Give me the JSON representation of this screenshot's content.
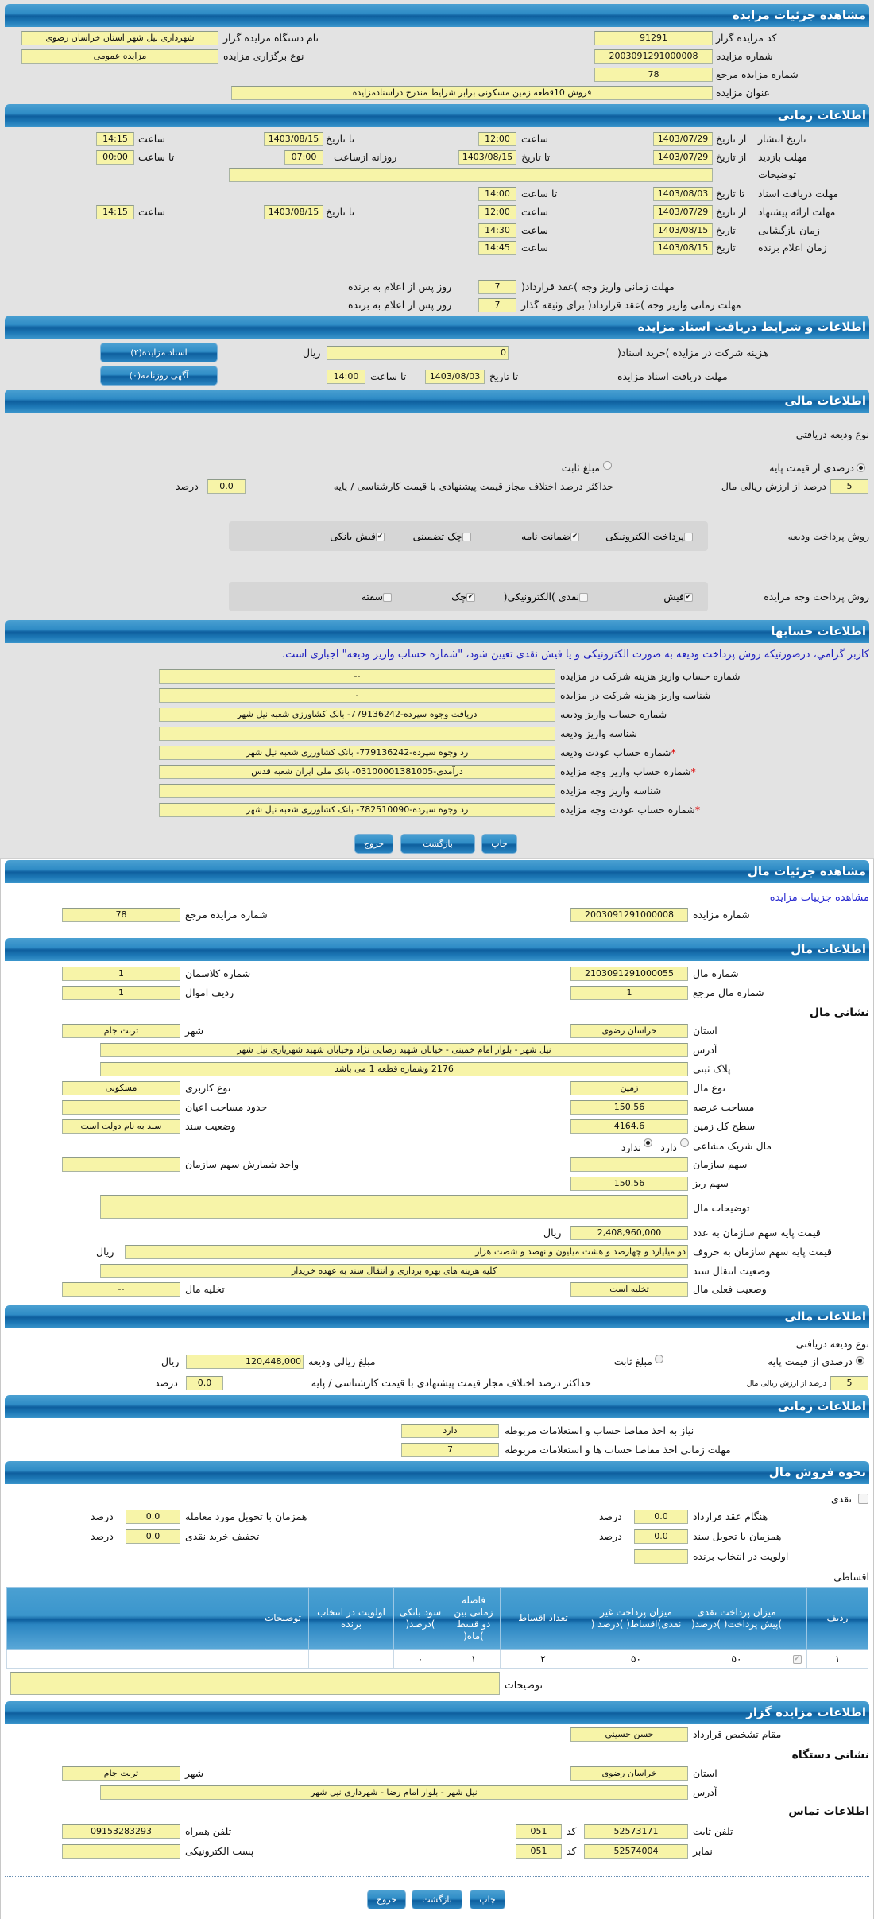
{
  "auction": {
    "title": "مشاهده جزئیات مزایده",
    "code_label": "کد مزایده گزار",
    "code": "91291",
    "org_label": "نام دستگاه مزایده گزار",
    "org": "شهرداری نیل شهر استان خراسان رضوی",
    "number_label": "شماره مزایده",
    "number": "2003091291000008",
    "type_label": "نوع برگزاری مزایده",
    "type": "مزایده عمومی",
    "ref_label": "شماره مزایده مرجع",
    "ref": "78",
    "subject_label": "عنوان مزایده",
    "subject": "فروش 10قطعه زمین مسکونی برابر شرایط مندرج دراسنادمزایده"
  },
  "timing": {
    "title": "اطلاعات زمانی",
    "from_date": "از تاریخ",
    "to_date": "تا تاریخ",
    "date": "تاریخ",
    "hour": "ساعت",
    "to_hour": "تا ساعت",
    "daily_from": "روزانه ازساعت",
    "publish_label": "تاریخ انتشار",
    "publish_from": "1403/07/29",
    "publish_from_time": "12:00",
    "publish_to": "1403/08/15",
    "publish_to_time": "14:15",
    "visit_label": "مهلت بازدید",
    "visit_from": "1403/07/29",
    "visit_to": "1403/08/15",
    "visit_daily_from": "07:00",
    "visit_daily_to": "00:00",
    "desc_label": "توضیحات",
    "desc": "",
    "docs_label": "مهلت دریافت اسناد",
    "docs_to": "1403/08/03",
    "docs_to_time": "14:00",
    "offer_label": "مهلت ارائه پیشنهاد",
    "offer_from": "1403/07/29",
    "offer_from_time": "12:00",
    "offer_to": "1403/08/15",
    "offer_to_time": "14:15",
    "opening_label": "زمان بازگشایی",
    "opening_date": "1403/08/15",
    "opening_time": "14:30",
    "winner_label": "زمان اعلام برنده",
    "winner_date": "1403/08/15",
    "winner_time": "14:45",
    "deposit_contract_label": "مهلت زمانی واریز وجه )عقد قرارداد(",
    "deposit_contract_days": "7",
    "deposit_guarantor_label": "مهلت زمانی واریز وجه )عقد قرارداد( برای وثیقه گذار",
    "deposit_guarantor_days": "7",
    "days_suffix": "روز پس از اعلام به برنده"
  },
  "documents": {
    "title": "اطلاعات و شرایط دریافت اسناد مزایده",
    "fee_label": "هزینه شرکت در مزایده )خرید اسناد(",
    "fee": "0",
    "currency": "ریال",
    "deadline_label": "مهلت دریافت اسناد مزایده",
    "to_date": "تا تاریخ",
    "deadline_date": "1403/08/03",
    "to_hour": "تا ساعت",
    "deadline_time": "14:00",
    "docs_button": "اسناد مزایده(۲)",
    "ads_button": "آگهی روزنامه(۰)"
  },
  "finance": {
    "title": "اطلاعات مالی",
    "deposit_type_label": "نوع ودیعه دریافتی",
    "percent_option": "درصدی از قیمت پایه",
    "percent_selected": true,
    "fixed_option": "مبلغ ثابت",
    "fixed_selected": false,
    "percent_value": "5",
    "percent_suffix": "درصد از ارزش ریالی مال",
    "max_diff_label": "حداکثر درصد اختلاف مجاز قیمت پیشنهادی با قیمت کارشناسی / پایه",
    "max_diff": "0.0",
    "percent_unit": "درصد",
    "deposit_method_label": "روش پرداخت ودیعه",
    "deposit_methods": [
      {
        "label": "پرداخت الکترونیکی",
        "checked": false
      },
      {
        "label": "ضمانت نامه",
        "checked": true
      },
      {
        "label": "چک تضمینی",
        "checked": false
      },
      {
        "label": "فیش بانکی",
        "checked": true
      }
    ],
    "payment_method_label": "روش پرداخت وجه مزایده",
    "payment_methods": [
      {
        "label": "فیش",
        "checked": true
      },
      {
        "label": "نقدی )الکترونیکی(",
        "checked": false
      },
      {
        "label": "چک",
        "checked": true
      },
      {
        "label": "سفته",
        "checked": false
      }
    ]
  },
  "accounts": {
    "title": "اطلاعات حسابها",
    "notice": "کاربر گرامي، درصورتیکه روش پرداخت ودیعه به صورت الکترونیکی و یا فیش نقدی تعیین شود، \"شماره حساب واریز ودیعه\" اجباری است.",
    "rows": [
      {
        "label": "شماره حساب واریز هزینه شرکت در مزایده",
        "value": "--",
        "required": false
      },
      {
        "label": "شناسه واریز هزینه شرکت در مزایده",
        "value": "-",
        "required": false
      },
      {
        "label": "شماره حساب واریز ودیعه",
        "value": "دریافت وجوه سپرده-779136242- بانک کشاورزی شعبه نیل شهر",
        "required": false
      },
      {
        "label": "شناسه واریز ودیعه",
        "value": "",
        "required": false
      },
      {
        "label": "شماره حساب عودت ودیعه",
        "value": "رد وجوه سپرده-779136242- بانک کشاورزی شعبه نیل شهر",
        "required": true
      },
      {
        "label": "شماره حساب واریز وجه مزایده",
        "value": "درآمدی-03100001381005- بانک ملی ایران شعبه قدس",
        "required": true
      },
      {
        "label": "شناسه واریز وجه مزایده",
        "value": "",
        "required": false
      },
      {
        "label": "شماره حساب عودت وجه مزایده",
        "value": "رد وجوه سپرده-782510090- بانک کشاورزی شعبه نیل شهر",
        "required": true
      }
    ],
    "required_mark": "*"
  },
  "actions": {
    "print": "چاپ",
    "back": "بازگشت",
    "exit": "خروج"
  },
  "item": {
    "title": "مشاهده جزئیات مال",
    "auction_link": "مشاهده جزییات مزایده",
    "auction_number_label": "شماره مزایده",
    "auction_number": "2003091291000008",
    "auction_ref_label": "شماره مزایده مرجع",
    "auction_ref": "78",
    "info_title": "اطلاعات مال",
    "item_number_label": "شماره مال",
    "item_number": "2103091291000055",
    "class_label": "شماره کلاسمان",
    "class": "1",
    "item_ref_label": "شماره مال مرجع",
    "item_ref": "1",
    "row_label": "ردیف اموال",
    "row": "1",
    "address_heading": "نشانی مال",
    "province_label": "استان",
    "province": "خراسان رضوی",
    "city_label": "شهر",
    "city": "تربت جام",
    "address_label": "آدرس",
    "address": "نیل شهر - بلوار امام خمینی - خیابان شهید رضایی نژاد وخیابان شهید شهریاری نیل شهر",
    "plate_label": "پلاک ثبتی",
    "plate": "2176 وشماره قطعه 1 می باشد",
    "kind_label": "نوع مال",
    "kind": "زمین",
    "usage_label": "نوع کاربری",
    "usage": "مسکونی",
    "area_label": "مساحت عرصه",
    "area": "150.56",
    "building_label": "حدود مساحت اعیان",
    "building": "",
    "total_label": "سطح کل زمین",
    "total": "4164.6",
    "deed_label": "وضعیت سند",
    "deed": "سند به نام دولت است",
    "shared_label": "مال شریک مشاعی",
    "shared_yes": "دارد",
    "shared_no": "ندارد",
    "shared": "no",
    "share_label": "سهم سازمان",
    "share": "",
    "share_unit_label": "واحد شمارش سهم سازمان",
    "share_unit": "",
    "share_detail_label": "سهم ریز",
    "share_detail": "150.56",
    "desc_label": "توضیحات مال",
    "desc": "",
    "price_num_label": "قیمت پایه سهم سازمان به عدد",
    "price_num": "2,408,960,000",
    "currency": "ریال",
    "price_words_label": "قیمت پایه سهم سازمان به حروف",
    "price_words": "دو میلیارد و چهارصد و هشت میلیون و نهصد و شصت هزار",
    "transfer_label": "وضعیت انتقال سند",
    "transfer": "کلیه هزینه های بهره برداری و انتقال سند به عهده خریدار",
    "status_label": "وضعیت فعلی مال",
    "status": "تخلیه است",
    "evacuation_label": "تخلیه مال",
    "evacuation": "--"
  },
  "item_finance": {
    "title": "اطلاعات مالی",
    "deposit_type_label": "نوع ودیعه دریافتی",
    "percent_option": "درصدی از قیمت پایه",
    "fixed_option": "مبلغ ثابت",
    "amount_label": "مبلغ ریالی ودیعه",
    "amount": "120,448,000",
    "currency": "ریال",
    "percent_value": "5",
    "percent_suffix": "درصد از ارزش ریالی مال",
    "max_diff_label": "حداکثر درصد اختلاف مجاز قیمت پیشنهادی با قیمت کارشناسی / پایه",
    "max_diff": "0.0",
    "percent_unit": "درصد"
  },
  "item_timing": {
    "title": "اطلاعات زمانی",
    "clearance_label": "نیاز به اخذ مفاصا حساب و استعلامات مربوطه",
    "clearance": "دارد",
    "clearance_days_label": "مهلت زمانی اخذ مفاصا حساب ها و استعلامات مربوطه",
    "clearance_days": "7"
  },
  "sale": {
    "title": "نحوه فروش مال",
    "cash_label": "نقدی",
    "cash_checked": false,
    "contract_label": "هنگام عقد قرارداد",
    "contract": "0.0",
    "delivery_label": "همزمان با تحویل مورد معامله",
    "delivery": "0.0",
    "deed_label": "همزمان با تحویل سند",
    "deed": "0.0",
    "discount_label": "تخفیف خرید نقدی",
    "discount": "0.0",
    "priority_label": "اولویت در انتخاب برنده",
    "priority": "",
    "percent_unit": "درصد",
    "installment_label": "اقساطی",
    "table": {
      "headers": [
        "ردیف",
        "",
        "میزان پرداخت نقدی )پیش پرداخت( )درصد(",
        "میزان پرداخت غیر نقدی)اقساط( )درصد (",
        "تعداد اقساط",
        "فاصله زمانی بین دو قسط )ماه(",
        "سود بانکی )درصد(",
        "اولویت در انتخاب برنده",
        "توضیحات",
        ""
      ],
      "rows": [
        [
          "۱",
          "",
          "۵۰",
          "۵۰",
          "۲",
          "۱",
          "۰",
          "",
          "",
          ""
        ]
      ]
    },
    "desc_label": "توضیحات",
    "desc": ""
  },
  "auctioneer": {
    "title": "اطلاعات مزایده گزار",
    "authority_label": "مقام تشخیص قرارداد",
    "authority": "حسن حسینی",
    "address_heading": "نشانی دستگاه",
    "province_label": "استان",
    "province": "خراسان رضوی",
    "city_label": "شهر",
    "city": "تربت جام",
    "address_label": "آدرس",
    "address": "نیل شهر - بلوار امام رضا - شهرداری نیل شهر",
    "contact_heading": "اطلاعات تماس",
    "phone_label": "تلفن ثابت",
    "phone": "52573171",
    "code_label": "کد",
    "phone_code": "051",
    "mobile_label": "تلفن همراه",
    "mobile": "09153283293",
    "fax_label": "نمابر",
    "fax": "52574004",
    "fax_code": "051",
    "email_label": "پست الکترونیکی",
    "email": ""
  },
  "colors": {
    "header": "#2f8cc6",
    "input_bg": "#f7f4a8",
    "notice": "#1d1dbf",
    "required": "#dd0000",
    "panel_bg": "#e3e3e3"
  }
}
